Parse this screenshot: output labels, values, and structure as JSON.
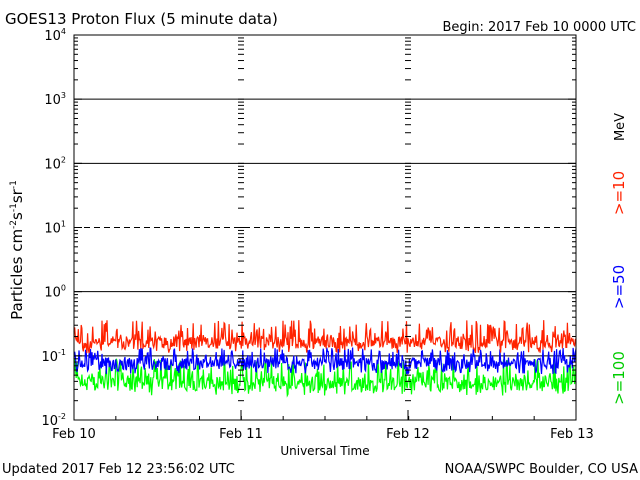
{
  "chart_data": {
    "type": "line",
    "title": "GOES13 Proton Flux (5 minute data)",
    "begin_label": "Begin: 2017 Feb 10 0000 UTC",
    "xlabel": "Universal Time",
    "ylabel_main": "Particles cm",
    "ylabel_sup1": "-2",
    "ylabel_mid1": "s",
    "ylabel_sup2": "-1",
    "ylabel_mid2": "sr",
    "ylabel_sup3": "-1",
    "x_ticks": [
      "Feb 10",
      "Feb 11",
      "Feb 12",
      "Feb 13"
    ],
    "y_scale": "log",
    "ylim": [
      0.01,
      10000
    ],
    "y_tick_labels": [
      {
        "base": "10",
        "exp": "4"
      },
      {
        "base": "10",
        "exp": "3"
      },
      {
        "base": "10",
        "exp": "2"
      },
      {
        "base": "10",
        "exp": "1"
      },
      {
        "base": "10",
        "exp": "0"
      },
      {
        "base": "10",
        "exp": "-1"
      },
      {
        "base": "10",
        "exp": "-2"
      }
    ],
    "threshold_lines": [
      {
        "value": 1000,
        "style": "solid"
      },
      {
        "value": 100,
        "style": "solid"
      },
      {
        "value": 10,
        "style": "dashed"
      },
      {
        "value": 1,
        "style": "solid"
      },
      {
        "value": 0.1,
        "style": "solid"
      }
    ],
    "units_label": "MeV",
    "series": [
      {
        "name": ">=10",
        "color": "#ff2200",
        "baseline": 0.16,
        "spread": [
          0.11,
          0.36
        ]
      },
      {
        "name": ">=50",
        "color": "#0000ff",
        "baseline": 0.075,
        "spread": [
          0.052,
          0.135
        ]
      },
      {
        "name": ">=100",
        "color": "#00ff00",
        "baseline": 0.037,
        "spread": [
          0.024,
          0.09
        ]
      }
    ]
  },
  "footer": {
    "updated": "Updated 2017 Feb 12 23:56:02 UTC",
    "credit": "NOAA/SWPC Boulder, CO USA"
  }
}
